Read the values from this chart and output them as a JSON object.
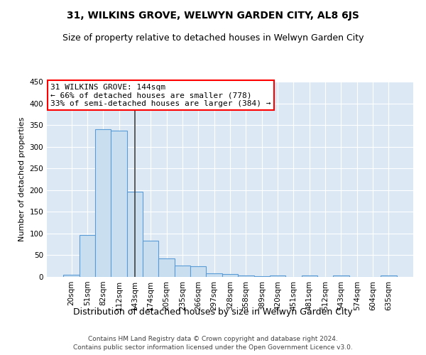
{
  "title": "31, WILKINS GROVE, WELWYN GARDEN CITY, AL8 6JS",
  "subtitle": "Size of property relative to detached houses in Welwyn Garden City",
  "xlabel": "Distribution of detached houses by size in Welwyn Garden City",
  "ylabel": "Number of detached properties",
  "footnote1": "Contains HM Land Registry data © Crown copyright and database right 2024.",
  "footnote2": "Contains public sector information licensed under the Open Government Licence v3.0.",
  "bin_labels": [
    "20sqm",
    "51sqm",
    "82sqm",
    "112sqm",
    "143sqm",
    "174sqm",
    "205sqm",
    "235sqm",
    "266sqm",
    "297sqm",
    "328sqm",
    "358sqm",
    "389sqm",
    "420sqm",
    "451sqm",
    "481sqm",
    "512sqm",
    "543sqm",
    "574sqm",
    "604sqm",
    "635sqm"
  ],
  "bar_heights": [
    5,
    97,
    340,
    337,
    197,
    83,
    42,
    27,
    24,
    8,
    6,
    4,
    2,
    4,
    0,
    4,
    0,
    4,
    0,
    0,
    3
  ],
  "bar_color": "#c9dff0",
  "bar_edgecolor": "#5b9bd5",
  "vline_x": 4,
  "vline_color": "#404040",
  "annotation_line1": "31 WILKINS GROVE: 144sqm",
  "annotation_line2": "← 66% of detached houses are smaller (778)",
  "annotation_line3": "33% of semi-detached houses are larger (384) →",
  "annotation_boxcolor": "white",
  "annotation_edgecolor": "red",
  "ylim": [
    0,
    450
  ],
  "yticks": [
    0,
    50,
    100,
    150,
    200,
    250,
    300,
    350,
    400,
    450
  ],
  "bg_color": "#dce9f5",
  "grid_color": "white",
  "title_fontsize": 10,
  "subtitle_fontsize": 9,
  "xlabel_fontsize": 9,
  "ylabel_fontsize": 8,
  "tick_fontsize": 7.5,
  "annot_fontsize": 8,
  "footnote_fontsize": 6.5
}
